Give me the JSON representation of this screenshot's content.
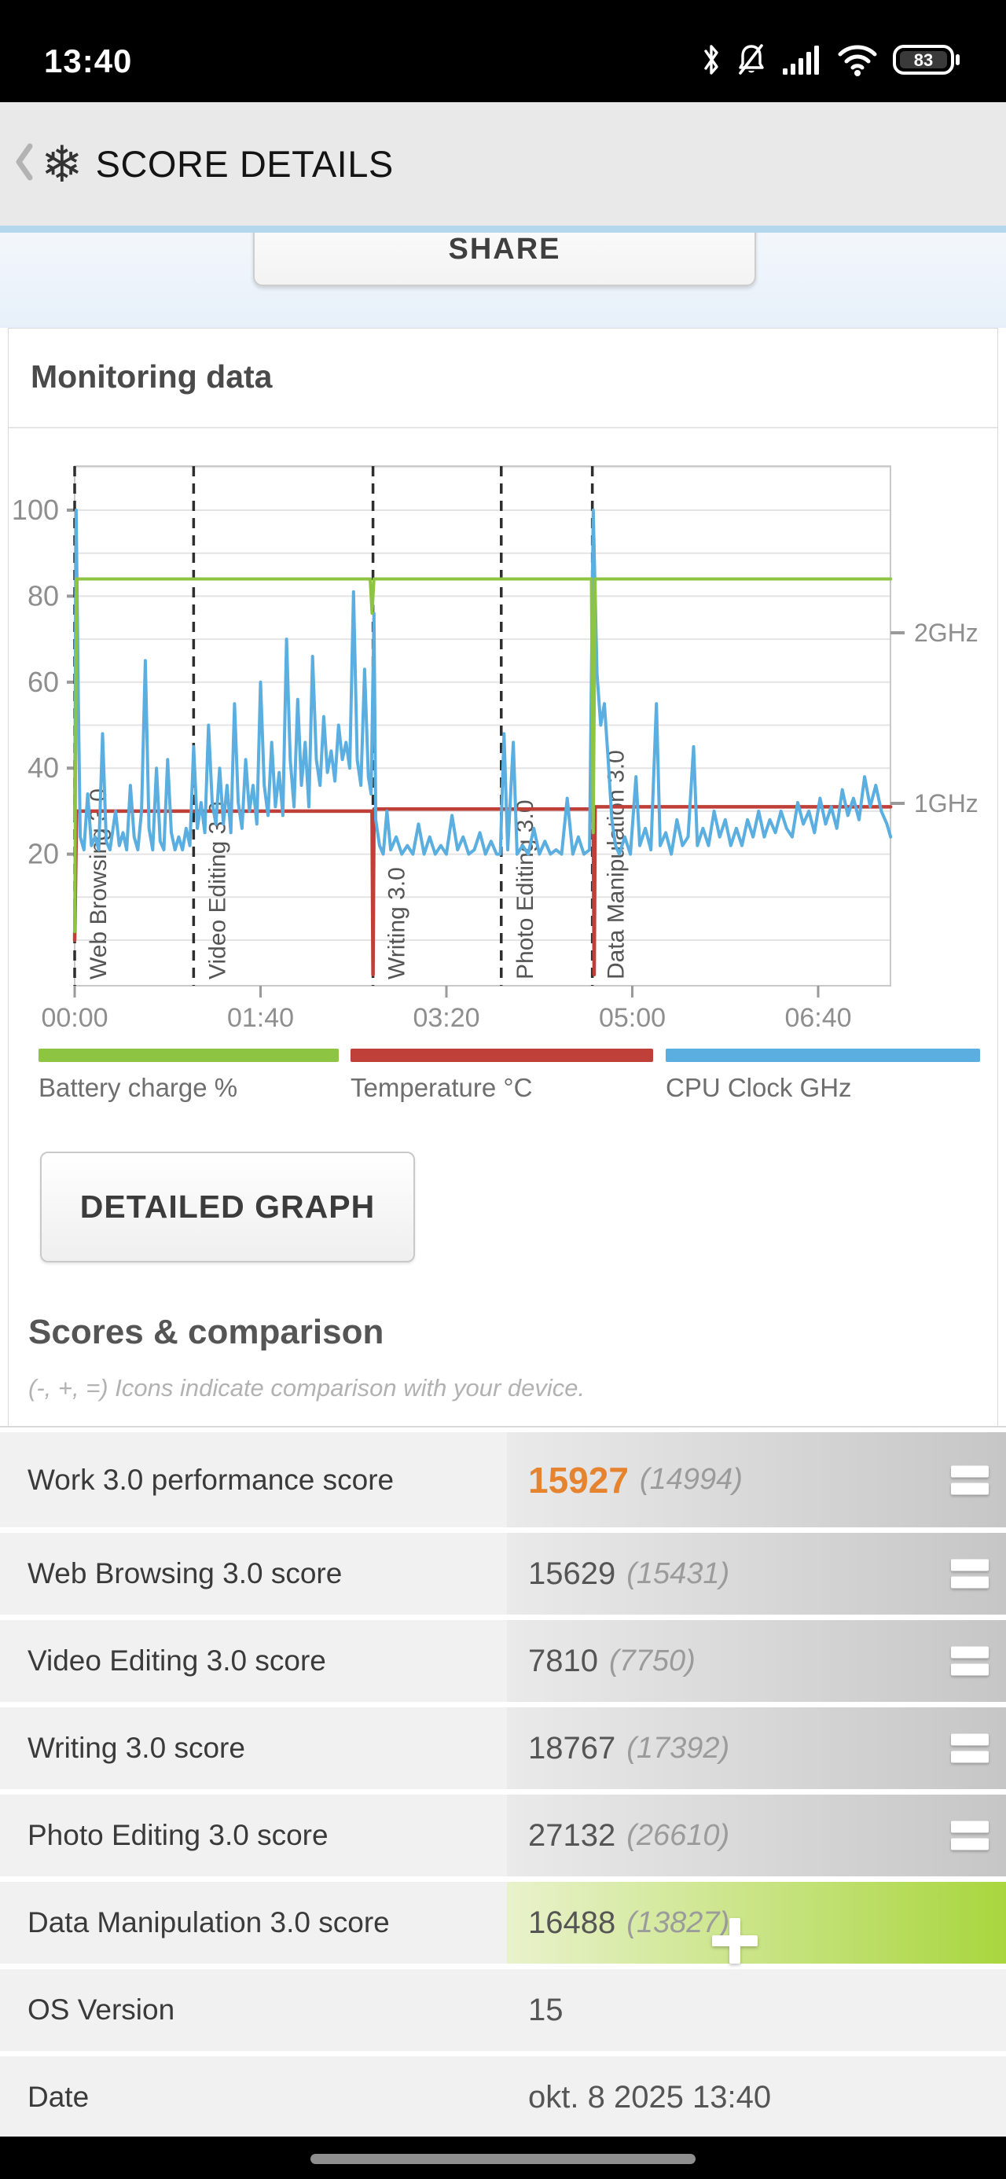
{
  "status_bar": {
    "time": "13:40",
    "battery_level": "83"
  },
  "header": {
    "title": "SCORE DETAILS"
  },
  "share_button": {
    "label": "SHARE"
  },
  "monitoring_card": {
    "title": "Monitoring data"
  },
  "chart_data": {
    "type": "line",
    "title": "Monitoring data",
    "x_axis": {
      "unit": "time mm:ss",
      "tick_seconds": [
        0,
        100,
        200,
        300,
        400
      ],
      "tick_labels": [
        "00:00",
        "01:40",
        "03:20",
        "05:00",
        "06:40"
      ],
      "range_seconds": [
        0,
        439
      ]
    },
    "y_axis_left": {
      "tick_values": [
        20,
        40,
        60,
        80,
        100
      ],
      "range": [
        -10,
        110
      ],
      "gridline_step": 10,
      "grid": true
    },
    "y_axis_right": {
      "ticks": [
        {
          "label": "1GHz",
          "ghz": 1
        },
        {
          "label": "2GHz",
          "ghz": 2
        }
      ]
    },
    "phases": [
      {
        "label": "Web Browsing 3.0",
        "start_s": 0
      },
      {
        "label": "Video Editing 3.0",
        "start_s": 64
      },
      {
        "label": "Writing 3.0",
        "start_s": 160.5
      },
      {
        "label": "Photo Editing 3.0",
        "start_s": 229.5
      },
      {
        "label": "Data Manipulation 3.0",
        "start_s": 278.5
      }
    ],
    "series": [
      {
        "name": "Temperature °C",
        "color": "#be4039",
        "width": 4.5,
        "points": [
          [
            0,
            0
          ],
          [
            1,
            30
          ],
          [
            160,
            30
          ],
          [
            160.5,
            -8
          ],
          [
            161,
            30.5
          ],
          [
            279,
            30.5
          ],
          [
            279.5,
            -8
          ],
          [
            280,
            31
          ],
          [
            439,
            31
          ]
        ]
      },
      {
        "name": "CPU Clock GHz",
        "color": "#5baee0",
        "width": 4,
        "points": [
          [
            0,
            28
          ],
          [
            0.8,
            100
          ],
          [
            2,
            55
          ],
          [
            3,
            24
          ],
          [
            5,
            21
          ],
          [
            7,
            34
          ],
          [
            9,
            22
          ],
          [
            11,
            24
          ],
          [
            13,
            21
          ],
          [
            15,
            48
          ],
          [
            17,
            23
          ],
          [
            19,
            21
          ],
          [
            22,
            30
          ],
          [
            24,
            22
          ],
          [
            26,
            25
          ],
          [
            28,
            21
          ],
          [
            30,
            36
          ],
          [
            32,
            24
          ],
          [
            34,
            21
          ],
          [
            36,
            30
          ],
          [
            38,
            65
          ],
          [
            40,
            26
          ],
          [
            42,
            21
          ],
          [
            44,
            40
          ],
          [
            46,
            23
          ],
          [
            48,
            21
          ],
          [
            50,
            42
          ],
          [
            52,
            25
          ],
          [
            54,
            21
          ],
          [
            56,
            24
          ],
          [
            58,
            21
          ],
          [
            60,
            26
          ],
          [
            62,
            22
          ],
          [
            64,
            45
          ],
          [
            66,
            26
          ],
          [
            68,
            32
          ],
          [
            70,
            25
          ],
          [
            72,
            50
          ],
          [
            74,
            32
          ],
          [
            76,
            27
          ],
          [
            78,
            40
          ],
          [
            80,
            27
          ],
          [
            82,
            36
          ],
          [
            84,
            25
          ],
          [
            86,
            55
          ],
          [
            88,
            32
          ],
          [
            90,
            26
          ],
          [
            92,
            42
          ],
          [
            94,
            30
          ],
          [
            96,
            36
          ],
          [
            98,
            27
          ],
          [
            100,
            60
          ],
          [
            102,
            36
          ],
          [
            104,
            29
          ],
          [
            106,
            46
          ],
          [
            108,
            31
          ],
          [
            110,
            39
          ],
          [
            112,
            29
          ],
          [
            114,
            70
          ],
          [
            116,
            42
          ],
          [
            118,
            31
          ],
          [
            120,
            56
          ],
          [
            122,
            36
          ],
          [
            124,
            46
          ],
          [
            126,
            31
          ],
          [
            128,
            66
          ],
          [
            130,
            42
          ],
          [
            132,
            36
          ],
          [
            134,
            52
          ],
          [
            136,
            39
          ],
          [
            138,
            44
          ],
          [
            140,
            37
          ],
          [
            142,
            50
          ],
          [
            144,
            42
          ],
          [
            146,
            46
          ],
          [
            148,
            40
          ],
          [
            150,
            81
          ],
          [
            152,
            42
          ],
          [
            154,
            36
          ],
          [
            156,
            63
          ],
          [
            158,
            38
          ],
          [
            159.5,
            34
          ],
          [
            161,
            76
          ],
          [
            162,
            28
          ],
          [
            164,
            22
          ],
          [
            166,
            20
          ],
          [
            168,
            30
          ],
          [
            170,
            21
          ],
          [
            173,
            24
          ],
          [
            176,
            20
          ],
          [
            179,
            22
          ],
          [
            182,
            20
          ],
          [
            185,
            27
          ],
          [
            188,
            20
          ],
          [
            191,
            24
          ],
          [
            194,
            20
          ],
          [
            197,
            22
          ],
          [
            200,
            20
          ],
          [
            203,
            29
          ],
          [
            206,
            21
          ],
          [
            209,
            24
          ],
          [
            212,
            20
          ],
          [
            215,
            21
          ],
          [
            218,
            25
          ],
          [
            221,
            20
          ],
          [
            224,
            23
          ],
          [
            227,
            20
          ],
          [
            229,
            20
          ],
          [
            231,
            48
          ],
          [
            233,
            21
          ],
          [
            236,
            46
          ],
          [
            238,
            20
          ],
          [
            241,
            22
          ],
          [
            244,
            20
          ],
          [
            247,
            26
          ],
          [
            250,
            20
          ],
          [
            253,
            23
          ],
          [
            256,
            20
          ],
          [
            259,
            21
          ],
          [
            262,
            20
          ],
          [
            265,
            33
          ],
          [
            268,
            20
          ],
          [
            271,
            24
          ],
          [
            274,
            20
          ],
          [
            277,
            21
          ],
          [
            279,
            100
          ],
          [
            281,
            62
          ],
          [
            283,
            50
          ],
          [
            285,
            55
          ],
          [
            287,
            42
          ],
          [
            289,
            28
          ],
          [
            291,
            22
          ],
          [
            293,
            20
          ],
          [
            296,
            24
          ],
          [
            299,
            20
          ],
          [
            302,
            38
          ],
          [
            304,
            22
          ],
          [
            307,
            26
          ],
          [
            310,
            21
          ],
          [
            313,
            55
          ],
          [
            315,
            22
          ],
          [
            318,
            25
          ],
          [
            321,
            20
          ],
          [
            324,
            28
          ],
          [
            327,
            22
          ],
          [
            330,
            24
          ],
          [
            333,
            45
          ],
          [
            335,
            22
          ],
          [
            338,
            26
          ],
          [
            341,
            22
          ],
          [
            344,
            30
          ],
          [
            347,
            24
          ],
          [
            350,
            28
          ],
          [
            353,
            22
          ],
          [
            356,
            26
          ],
          [
            359,
            22
          ],
          [
            362,
            28
          ],
          [
            365,
            24
          ],
          [
            368,
            30
          ],
          [
            371,
            24
          ],
          [
            374,
            28
          ],
          [
            377,
            25
          ],
          [
            380,
            30
          ],
          [
            383,
            26
          ],
          [
            386,
            24
          ],
          [
            389,
            32
          ],
          [
            392,
            27
          ],
          [
            395,
            30
          ],
          [
            398,
            25
          ],
          [
            401,
            33
          ],
          [
            404,
            27
          ],
          [
            407,
            31
          ],
          [
            410,
            26
          ],
          [
            413,
            35
          ],
          [
            416,
            29
          ],
          [
            419,
            33
          ],
          [
            422,
            28
          ],
          [
            425,
            38
          ],
          [
            428,
            31
          ],
          [
            431,
            36
          ],
          [
            434,
            30
          ],
          [
            437,
            27
          ],
          [
            439,
            24
          ]
        ]
      },
      {
        "name": "Battery charge %",
        "color": "#8dc442",
        "width": 4,
        "points": [
          [
            0,
            2
          ],
          [
            1,
            84
          ],
          [
            159,
            84
          ],
          [
            160,
            76
          ],
          [
            161,
            84
          ],
          [
            278,
            84
          ],
          [
            279,
            25
          ],
          [
            280,
            84
          ],
          [
            439,
            84
          ]
        ]
      }
    ],
    "legend_position": "bottom"
  },
  "legend": [
    {
      "label": "Battery charge %",
      "color": "#8dc442"
    },
    {
      "label": "Temperature °C",
      "color": "#be4039"
    },
    {
      "label": "CPU Clock GHz",
      "color": "#5baee0"
    }
  ],
  "detailed_graph_button": {
    "label": "DETAILED GRAPH"
  },
  "scores_section": {
    "heading": "Scores & comparison",
    "subtitle": "(-, +, =) Icons indicate comparison with your device.",
    "rows": [
      {
        "label": "Work 3.0 performance score",
        "value": "15927",
        "reference": "(14994)",
        "icon": "equal",
        "value_style": "orange",
        "highlight": false,
        "tall": true
      },
      {
        "label": "Web Browsing 3.0 score",
        "value": "15629",
        "reference": "(15431)",
        "icon": "equal",
        "highlight": false
      },
      {
        "label": "Video Editing 3.0 score",
        "value": "7810",
        "reference": "(7750)",
        "icon": "equal",
        "highlight": false
      },
      {
        "label": "Writing 3.0 score",
        "value": "18767",
        "reference": "(17392)",
        "icon": "equal",
        "highlight": false
      },
      {
        "label": "Photo Editing 3.0 score",
        "value": "27132",
        "reference": "(26610)",
        "icon": "equal",
        "highlight": false
      },
      {
        "label": "Data Manipulation 3.0 score",
        "value": "16488",
        "reference": "(13827)",
        "icon": "plus",
        "highlight": true
      },
      {
        "label": "OS Version",
        "value": "15",
        "reference": "",
        "icon": null,
        "highlight": false
      },
      {
        "label": "Date",
        "value": "okt. 8 2025 13:40",
        "reference": "",
        "icon": null,
        "highlight": false
      }
    ]
  },
  "colors": {
    "accent_orange": "#e5832f",
    "highlight_green_start": "#e9f2cc",
    "highlight_green_end": "#a9d63e",
    "header_bg": "#e9e9e9",
    "blue_strip": "#b5d7ee"
  }
}
